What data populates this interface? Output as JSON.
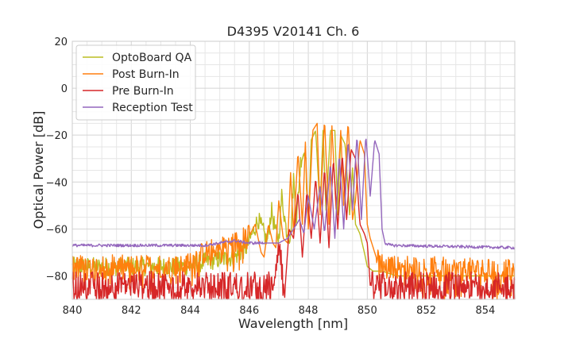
{
  "chart_data": {
    "type": "line",
    "title": "D4395 V20141 Ch. 6",
    "xlabel": "Wavelength [nm]",
    "ylabel": "Optical Power [dB]",
    "xlim": [
      840,
      855
    ],
    "ylim": [
      -90,
      20
    ],
    "xticks": [
      840,
      842,
      844,
      846,
      848,
      850,
      852,
      854
    ],
    "xtick_labels": [
      "840",
      "842",
      "844",
      "846",
      "848",
      "850",
      "852",
      "854"
    ],
    "yticks": [
      20,
      0,
      -20,
      -40,
      -60,
      -80
    ],
    "ytick_labels": [
      "20",
      "0",
      "−20",
      "−40",
      "−60",
      "−80"
    ],
    "grid": true,
    "legend_position": "top-left",
    "series": [
      {
        "name": "OptoBoard QA",
        "color": "#bcbd22",
        "noise_floor": [
          [
            840,
            848.0,
            -76,
            4
          ]
        ],
        "x": [
          840,
          843.5,
          844.5,
          845.5,
          845.9,
          846.1,
          846.3,
          846.5,
          846.6,
          846.75,
          846.9,
          847.0,
          847.1,
          847.25,
          847.4,
          847.5,
          847.6,
          847.75,
          847.9,
          848.0,
          848.1,
          848.25,
          848.4,
          848.5,
          848.6,
          848.75,
          848.9,
          849.0,
          849.1,
          849.25,
          849.4,
          849.5,
          849.6,
          849.75,
          849.9,
          850.0,
          850.2,
          850.5,
          851,
          855
        ],
        "y": [
          -76,
          -77,
          -74,
          -72,
          -68,
          -62,
          -56,
          -62,
          -66,
          -52,
          -62,
          -64,
          -46,
          -60,
          -64,
          -38,
          -56,
          -30,
          -26,
          -60,
          -22,
          -18,
          -52,
          -18,
          -52,
          -18,
          -18,
          -54,
          -20,
          -24,
          -54,
          -34,
          -58,
          -62,
          -70,
          -76,
          -78,
          -78,
          -80,
          -80
        ]
      },
      {
        "name": "Post Burn-In",
        "color": "#ff7f0e",
        "noise_floor": [
          [
            840,
            846.0,
            -76,
            5
          ],
          [
            850.3,
            855,
            -78,
            5
          ]
        ],
        "x": [
          840,
          843.5,
          844.5,
          845.5,
          846.0,
          846.2,
          846.4,
          846.5,
          846.65,
          846.8,
          846.9,
          847.0,
          847.15,
          847.3,
          847.4,
          847.5,
          847.65,
          847.8,
          847.9,
          848.0,
          848.15,
          848.3,
          848.4,
          848.55,
          848.7,
          848.8,
          848.95,
          849.1,
          849.2,
          849.35,
          849.5,
          849.6,
          849.75,
          849.9,
          850.0,
          850.1,
          850.3,
          850.6,
          855
        ],
        "y": [
          -76,
          -77,
          -70,
          -66,
          -63,
          -58,
          -70,
          -72,
          -58,
          -66,
          -68,
          -48,
          -64,
          -66,
          -36,
          -62,
          -27,
          -58,
          -23,
          -60,
          -18,
          -15,
          -54,
          -13,
          -58,
          -16,
          -54,
          -18,
          -50,
          -14,
          -56,
          -48,
          -22,
          -28,
          -58,
          -64,
          -72,
          -76,
          -78
        ]
      },
      {
        "name": "Pre Burn-In",
        "color": "#d62728",
        "noise_floor": [
          [
            840,
            847.2,
            -84,
            6
          ],
          [
            850.1,
            855,
            -84,
            6
          ]
        ],
        "x": [
          840,
          846.8,
          847.0,
          847.2,
          847.35,
          847.5,
          847.65,
          847.8,
          847.95,
          848.1,
          848.25,
          848.4,
          848.55,
          848.7,
          848.85,
          849.0,
          849.15,
          849.3,
          849.45,
          849.6,
          849.75,
          849.9,
          850.0,
          850.1,
          855
        ],
        "y": [
          -84,
          -84,
          -66,
          -88,
          -60,
          -64,
          -44,
          -72,
          -44,
          -64,
          -38,
          -66,
          -34,
          -68,
          -30,
          -60,
          -28,
          -56,
          -26,
          -30,
          -58,
          -62,
          -66,
          -84,
          -84
        ]
      },
      {
        "name": "Reception Test",
        "color": "#9467bd",
        "noise_floor": [
          [
            840,
            846.5,
            -67,
            0.6
          ],
          [
            850.6,
            855,
            -68,
            0.6
          ]
        ],
        "x": [
          840,
          844.5,
          845.5,
          846.0,
          846.5,
          847.0,
          847.3,
          847.5,
          847.7,
          847.85,
          848.0,
          848.2,
          848.4,
          848.55,
          848.75,
          848.9,
          849.05,
          849.2,
          849.35,
          849.5,
          849.65,
          849.8,
          849.95,
          850.1,
          850.25,
          850.4,
          850.5,
          850.6,
          850.8,
          855
        ],
        "y": [
          -67,
          -67,
          -65,
          -66,
          -66,
          -66,
          -64,
          -60,
          -56,
          -62,
          -46,
          -60,
          -42,
          -62,
          -32,
          -64,
          -28,
          -60,
          -22,
          -52,
          -20,
          -56,
          -20,
          -46,
          -22,
          -28,
          -60,
          -66,
          -67,
          -68
        ]
      }
    ]
  }
}
